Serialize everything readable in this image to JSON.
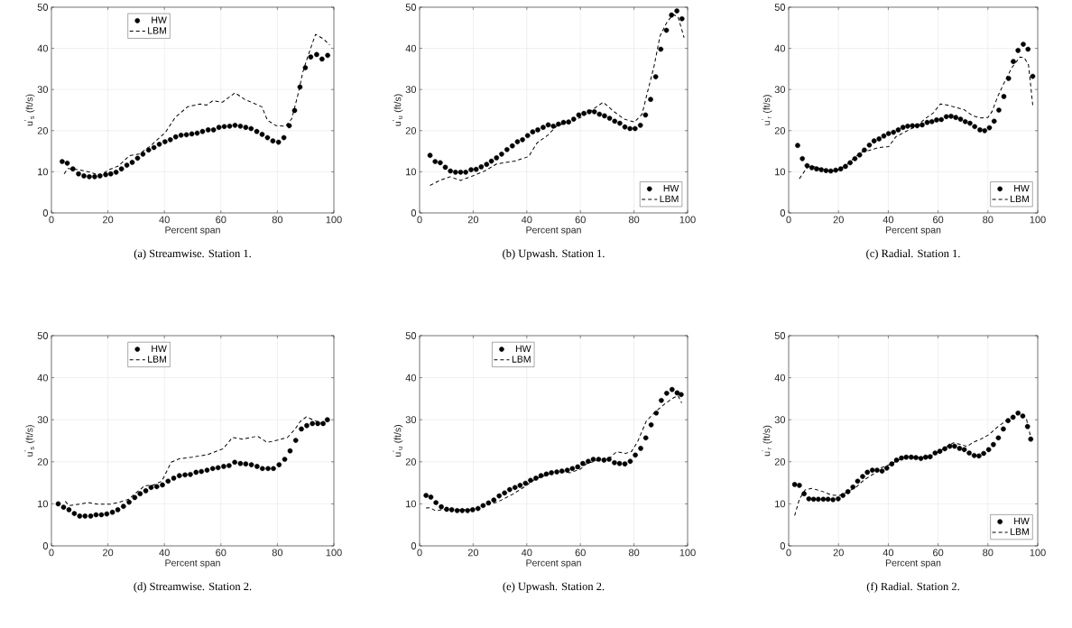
{
  "chart_data": [
    {
      "type": "line",
      "title": "(a)  Streamwise. Station 1.",
      "xlabel": "Percent span",
      "ylabel": "u$^{'}$$_{s}$ (ft/s)",
      "xlim": [
        0,
        100
      ],
      "ylim": [
        0,
        50
      ],
      "xticks": [
        0,
        20,
        40,
        60,
        80,
        100
      ],
      "yticks": [
        0,
        10,
        20,
        30,
        40,
        50
      ],
      "grid": true,
      "legend": "top left",
      "series": [
        {
          "name": "HW",
          "type": "scatter",
          "marker": "circle",
          "color": "#000000",
          "x": [
            3.8,
            5.6,
            7.6,
            9.6,
            11.5,
            13.4,
            15.3,
            17.2,
            19.2,
            21.0,
            22.9,
            24.8,
            26.7,
            28.6,
            30.5,
            32.4,
            34.4,
            36.3,
            38.2,
            40.2,
            42.1,
            44.0,
            45.9,
            47.8,
            49.7,
            51.6,
            53.5,
            55.5,
            57.4,
            59.3,
            61.2,
            63.1,
            65.0,
            66.9,
            68.8,
            70.7,
            72.7,
            74.6,
            76.5,
            78.4,
            80.4,
            82.3,
            84.2,
            86.1,
            88.0,
            89.9,
            91.8,
            93.9,
            95.8,
            97.8
          ],
          "values": [
            12.5,
            12.1,
            10.7,
            9.5,
            9.0,
            8.8,
            8.8,
            9.0,
            9.3,
            9.5,
            9.9,
            10.7,
            11.6,
            12.3,
            13.3,
            14.3,
            15.3,
            15.9,
            16.7,
            17.3,
            17.8,
            18.5,
            18.9,
            19.0,
            19.2,
            19.4,
            19.8,
            20.2,
            20.2,
            20.8,
            21.0,
            21.1,
            21.3,
            21.1,
            20.8,
            20.5,
            19.8,
            19.1,
            18.3,
            17.5,
            17.2,
            18.3,
            21.2,
            24.9,
            30.6,
            35.3,
            37.9,
            38.5,
            37.4,
            38.3
          ]
        },
        {
          "name": "LBM",
          "line_style": "dashed",
          "color": "#000000",
          "x": [
            4.5,
            5.8,
            9.7,
            13.6,
            17.2,
            20.3,
            23.7,
            27.6,
            31.0,
            34.9,
            40.4,
            43.8,
            48.2,
            52.7,
            54.9,
            57.2,
            60.5,
            65.0,
            68.4,
            74.5,
            76.5,
            79.6,
            82.9,
            85.1,
            87.4,
            89.0,
            90.7,
            93.5,
            96.3,
            98.5
          ],
          "values": [
            9.5,
            10.8,
            10.5,
            9.9,
            9.1,
            10.5,
            11.4,
            13.9,
            14.3,
            16.2,
            19.6,
            23.2,
            25.8,
            26.5,
            26.2,
            27.3,
            26.9,
            29.2,
            27.6,
            25.8,
            22.5,
            21.2,
            21.1,
            22.9,
            29.1,
            34.2,
            37.9,
            43.4,
            42.3,
            40.8
          ]
        }
      ]
    },
    {
      "type": "line",
      "title": "(b)  Upwash. Station 1.",
      "xlabel": "Percent span",
      "ylabel": "u$^{'}$$_{u}$ (ft/s)",
      "xlim": [
        0,
        100
      ],
      "ylim": [
        0,
        50
      ],
      "xticks": [
        0,
        20,
        40,
        60,
        80,
        100
      ],
      "yticks": [
        0,
        10,
        20,
        30,
        40,
        50
      ],
      "grid": true,
      "legend": "bottom right",
      "series": [
        {
          "name": "HW",
          "type": "scatter",
          "marker": "circle",
          "color": "#000000",
          "x": [
            3.9,
            5.8,
            7.7,
            9.6,
            11.5,
            13.4,
            15.3,
            17.2,
            19.2,
            21.1,
            23.0,
            25.0,
            26.8,
            28.7,
            30.6,
            32.6,
            34.6,
            36.5,
            38.4,
            40.3,
            42.2,
            44.1,
            46.1,
            48.0,
            49.9,
            51.8,
            53.7,
            55.6,
            57.5,
            59.4,
            61.3,
            63.3,
            65.2,
            67.1,
            69.0,
            70.9,
            72.8,
            74.7,
            76.6,
            78.5,
            80.4,
            82.4,
            84.3,
            86.2,
            88.1,
            90.0,
            92.1,
            94.0,
            96.0,
            97.9
          ],
          "values": [
            14.0,
            12.5,
            12.2,
            11.1,
            10.2,
            9.9,
            9.9,
            9.9,
            10.5,
            10.6,
            11.2,
            11.8,
            12.6,
            13.4,
            14.3,
            15.4,
            16.3,
            17.3,
            17.8,
            18.8,
            19.7,
            20.2,
            20.8,
            21.4,
            21.1,
            21.6,
            22.0,
            22.1,
            22.8,
            23.8,
            24.2,
            24.6,
            24.6,
            24.0,
            23.6,
            23.0,
            22.3,
            21.8,
            20.9,
            20.5,
            20.5,
            21.3,
            23.8,
            27.6,
            33.1,
            39.8,
            44.4,
            48.1,
            49.1,
            47.2
          ]
        },
        {
          "name": "LBM",
          "line_style": "dashed",
          "color": "#000000",
          "x": [
            3.9,
            7.5,
            11.4,
            15.3,
            19.8,
            24.3,
            28.7,
            35.5,
            40.7,
            43.8,
            47.8,
            51.1,
            55.6,
            60.1,
            63.4,
            68.5,
            72.4,
            76.3,
            80.2,
            83.0,
            85.2,
            87.5,
            89.7,
            92.5,
            94.7,
            96.4,
            98.7
          ],
          "values": [
            6.7,
            7.9,
            8.8,
            7.9,
            9.0,
            10.2,
            11.9,
            12.6,
            13.7,
            17.0,
            18.9,
            21.1,
            22.1,
            23.2,
            24.6,
            26.9,
            24.7,
            22.8,
            22.1,
            24.0,
            29.8,
            35.7,
            43.0,
            46.6,
            48.2,
            47.7,
            42.6
          ]
        }
      ]
    },
    {
      "type": "line",
      "title": "(c)  Radial. Station 1.",
      "xlabel": "Percent span",
      "ylabel": "u$^{'}$$_{r}$ (ft/s)",
      "xlim": [
        0,
        100
      ],
      "ylim": [
        0,
        50
      ],
      "xticks": [
        0,
        20,
        40,
        60,
        80,
        100
      ],
      "yticks": [
        0,
        10,
        20,
        30,
        40,
        50
      ],
      "grid": true,
      "legend": "bottom right",
      "series": [
        {
          "name": "HW",
          "type": "scatter",
          "marker": "circle",
          "color": "#000000",
          "x": [
            3.6,
            5.5,
            7.4,
            9.3,
            11.2,
            13.1,
            15.0,
            16.9,
            18.9,
            20.9,
            22.8,
            24.7,
            26.6,
            28.5,
            30.4,
            32.4,
            34.3,
            36.3,
            38.2,
            40.1,
            42.1,
            44.0,
            45.9,
            47.8,
            49.7,
            51.6,
            53.6,
            55.6,
            57.5,
            59.4,
            61.3,
            63.3,
            65.2,
            67.1,
            69.0,
            70.9,
            72.8,
            74.7,
            76.8,
            78.7,
            80.6,
            82.5,
            84.4,
            86.4,
            88.3,
            90.2,
            92.1,
            94.2,
            96.1,
            98.0
          ],
          "values": [
            16.4,
            13.2,
            11.5,
            11.0,
            10.7,
            10.5,
            10.3,
            10.2,
            10.4,
            10.7,
            11.3,
            12.2,
            13.2,
            14.1,
            15.3,
            16.5,
            17.5,
            18.0,
            18.7,
            19.3,
            19.6,
            20.2,
            20.8,
            21.1,
            21.2,
            21.2,
            21.4,
            22.0,
            22.2,
            22.6,
            22.7,
            23.4,
            23.5,
            23.2,
            22.8,
            22.2,
            21.8,
            21.0,
            20.2,
            20.0,
            20.7,
            22.3,
            25.0,
            28.3,
            32.7,
            36.8,
            39.5,
            41.0,
            39.8,
            33.2
          ]
        },
        {
          "name": "LBM",
          "line_style": "dashed",
          "color": "#000000",
          "x": [
            4.3,
            7.1,
            8.8,
            14.4,
            18.9,
            23.3,
            29.0,
            32.3,
            36.3,
            40.2,
            43.0,
            46.4,
            51.4,
            54.8,
            58.1,
            60.9,
            63.8,
            70.5,
            73.9,
            77.2,
            80.0,
            81.7,
            84.0,
            86.8,
            89.6,
            92.9,
            94.6,
            96.3,
            98.0
          ],
          "values": [
            8.3,
            10.8,
            11.5,
            10.5,
            10.1,
            11.7,
            14.8,
            15.2,
            15.9,
            16.1,
            18.5,
            19.6,
            21.1,
            22.9,
            24.3,
            26.5,
            26.2,
            25.1,
            23.6,
            23.1,
            23.2,
            24.7,
            28.4,
            32.0,
            35.3,
            37.9,
            37.7,
            36.0,
            26.2
          ]
        }
      ]
    },
    {
      "type": "line",
      "title": "(d)  Streamwise. Station 2.",
      "xlabel": "Percent span",
      "ylabel": "u$^{'}$$_{s}$ (ft/s)",
      "xlim": [
        0,
        100
      ],
      "ylim": [
        0,
        50
      ],
      "xticks": [
        0,
        20,
        40,
        60,
        80,
        100
      ],
      "yticks": [
        0,
        10,
        20,
        30,
        40,
        50
      ],
      "grid": true,
      "legend": "top left",
      "series": [
        {
          "name": "HW",
          "type": "scatter",
          "marker": "circle",
          "color": "#000000",
          "x": [
            2.4,
            4.3,
            6.2,
            8.1,
            10.0,
            11.9,
            13.9,
            15.8,
            17.7,
            19.6,
            21.6,
            23.5,
            25.5,
            27.5,
            29.5,
            31.4,
            33.4,
            35.3,
            37.3,
            39.3,
            41.3,
            43.3,
            45.3,
            47.3,
            49.2,
            51.2,
            53.1,
            55.1,
            57.1,
            59.0,
            61.0,
            62.9,
            64.9,
            66.9,
            68.8,
            70.8,
            72.8,
            74.7,
            76.7,
            78.6,
            80.6,
            82.6,
            84.5,
            86.5,
            88.5,
            90.4,
            92.4,
            94.3,
            96.2,
            97.7
          ],
          "values": [
            10.0,
            9.2,
            8.6,
            7.7,
            7.1,
            7.1,
            7.1,
            7.4,
            7.4,
            7.6,
            8.0,
            8.6,
            9.4,
            10.4,
            11.5,
            12.4,
            13.1,
            13.9,
            14.1,
            14.5,
            15.4,
            16.1,
            16.7,
            16.9,
            17.0,
            17.5,
            17.7,
            18.0,
            18.4,
            18.6,
            18.9,
            19.1,
            19.9,
            19.6,
            19.5,
            19.3,
            18.9,
            18.4,
            18.4,
            18.4,
            19.3,
            20.6,
            22.6,
            25.1,
            27.8,
            28.6,
            29.1,
            29.1,
            29.1,
            30.0
          ]
        },
        {
          "name": "LBM",
          "line_style": "dashed",
          "color": "#000000",
          "x": [
            4.9,
            6.2,
            10.7,
            12.9,
            16.3,
            20.7,
            24.1,
            27.4,
            29.6,
            33.0,
            36.3,
            39.1,
            42.4,
            45.2,
            49.7,
            55.2,
            60.8,
            64.1,
            67.5,
            73.0,
            76.4,
            79.7,
            83.6,
            86.4,
            88.1,
            90.3,
            92.5,
            94.8,
            97.0
          ],
          "values": [
            10.6,
            9.6,
            10.0,
            10.3,
            9.9,
            9.9,
            10.4,
            11.1,
            12.4,
            14.3,
            14.5,
            15.4,
            19.9,
            20.7,
            21.1,
            21.7,
            23.1,
            25.8,
            25.4,
            26.1,
            24.6,
            25.1,
            25.8,
            27.9,
            29.6,
            30.7,
            30.0,
            29.4,
            29.0
          ]
        }
      ]
    },
    {
      "type": "line",
      "title": "(e)  Upwash. Station 2.",
      "xlabel": "Percent span",
      "ylabel": "u$^{'}$$_{u}$ (ft/s)",
      "xlim": [
        0,
        100
      ],
      "ylim": [
        0,
        50
      ],
      "xticks": [
        0,
        20,
        40,
        60,
        80,
        100
      ],
      "yticks": [
        0,
        10,
        20,
        30,
        40,
        50
      ],
      "grid": true,
      "legend": "top left",
      "series": [
        {
          "name": "HW",
          "type": "scatter",
          "marker": "circle",
          "color": "#000000",
          "x": [
            2.4,
            4.2,
            6.1,
            8.1,
            10.1,
            12.0,
            14.0,
            15.9,
            17.9,
            19.8,
            21.8,
            23.7,
            25.7,
            27.7,
            29.7,
            31.7,
            33.6,
            35.6,
            37.5,
            39.5,
            41.4,
            43.4,
            45.3,
            47.3,
            49.2,
            51.2,
            53.1,
            55.1,
            57.0,
            59.0,
            60.9,
            62.9,
            64.8,
            66.8,
            68.8,
            70.7,
            72.7,
            74.6,
            76.6,
            78.6,
            80.5,
            82.5,
            84.4,
            86.4,
            88.3,
            90.2,
            92.2,
            94.2,
            96.1,
            97.6
          ],
          "values": [
            12.0,
            11.6,
            10.3,
            9.3,
            8.7,
            8.6,
            8.4,
            8.4,
            8.4,
            8.6,
            8.9,
            9.6,
            10.2,
            10.9,
            11.9,
            12.6,
            13.4,
            13.9,
            14.4,
            14.9,
            15.6,
            16.1,
            16.7,
            17.1,
            17.4,
            17.6,
            17.8,
            18.0,
            18.4,
            18.8,
            19.6,
            20.1,
            20.6,
            20.6,
            20.4,
            20.6,
            19.8,
            19.6,
            19.5,
            20.1,
            21.6,
            23.2,
            25.7,
            28.8,
            31.6,
            34.6,
            36.3,
            37.2,
            36.4,
            36.0
          ]
        },
        {
          "name": "LBM",
          "line_style": "dashed",
          "color": "#000000",
          "x": [
            2.4,
            3.9,
            6.1,
            8.9,
            14.5,
            20.0,
            24.5,
            29.0,
            34.5,
            39.0,
            43.4,
            47.9,
            52.3,
            56.2,
            60.1,
            62.4,
            66.8,
            71.3,
            73.5,
            76.8,
            79.0,
            81.3,
            84.6,
            88.0,
            91.9,
            94.7,
            96.4,
            97.8
          ],
          "values": [
            9.0,
            9.1,
            8.3,
            8.7,
            8.6,
            8.6,
            9.7,
            10.4,
            12.2,
            14.0,
            16.0,
            17.0,
            17.8,
            17.4,
            18.3,
            19.6,
            20.4,
            21.1,
            22.4,
            22.0,
            22.4,
            24.7,
            29.7,
            31.9,
            34.0,
            35.2,
            35.7,
            34.0
          ]
        }
      ]
    },
    {
      "type": "line",
      "title": "(f)  Radial. Station 2.",
      "xlabel": "Percent span",
      "ylabel": "u$^{'}$$_{r}$ (ft/s)",
      "xlim": [
        0,
        100
      ],
      "ylim": [
        0,
        50
      ],
      "xticks": [
        0,
        20,
        40,
        60,
        80,
        100
      ],
      "yticks": [
        0,
        10,
        20,
        30,
        40,
        50
      ],
      "grid": true,
      "legend": "bottom right",
      "series": [
        {
          "name": "HW",
          "type": "scatter",
          "marker": "circle",
          "color": "#000000",
          "x": [
            2.4,
            4.3,
            6.2,
            8.1,
            10.0,
            11.9,
            13.9,
            15.8,
            17.8,
            19.9,
            21.8,
            23.8,
            25.8,
            27.7,
            29.7,
            31.6,
            33.6,
            35.5,
            37.5,
            39.4,
            41.4,
            43.3,
            45.3,
            47.2,
            49.2,
            51.1,
            53.1,
            55.0,
            56.8,
            58.8,
            60.7,
            62.7,
            64.7,
            66.6,
            68.6,
            70.5,
            72.5,
            74.5,
            76.4,
            78.3,
            80.3,
            82.2,
            84.2,
            86.2,
            88.1,
            90.1,
            92.1,
            94.0,
            95.9,
            97.2
          ],
          "values": [
            14.6,
            14.4,
            12.4,
            11.2,
            11.1,
            11.1,
            11.1,
            11.1,
            11.0,
            11.2,
            12.0,
            12.9,
            14.0,
            15.4,
            16.5,
            17.5,
            18.0,
            18.0,
            17.8,
            18.5,
            19.5,
            20.4,
            20.9,
            21.1,
            21.1,
            21.0,
            20.8,
            21.1,
            21.2,
            22.1,
            22.5,
            23.1,
            23.7,
            23.7,
            23.2,
            22.9,
            22.1,
            21.5,
            21.4,
            22.0,
            22.9,
            24.1,
            25.7,
            27.8,
            29.8,
            30.6,
            31.6,
            30.9,
            28.4,
            25.4
          ]
        },
        {
          "name": "LBM",
          "line_style": "dashed",
          "color": "#000000",
          "x": [
            2.4,
            4.3,
            6.6,
            9.3,
            13.8,
            17.1,
            20.5,
            23.8,
            27.1,
            30.5,
            33.8,
            37.2,
            40.5,
            43.9,
            48.3,
            53.8,
            58.3,
            62.7,
            66.1,
            69.4,
            71.6,
            73.9,
            77.2,
            80.5,
            83.9,
            87.2,
            90.5,
            92.8,
            95.5,
            97.2
          ],
          "values": [
            7.2,
            11.1,
            13.3,
            13.7,
            12.9,
            12.1,
            12.0,
            12.9,
            14.0,
            15.8,
            17.0,
            18.6,
            19.3,
            20.4,
            21.1,
            21.0,
            21.7,
            23.3,
            24.5,
            24.1,
            23.6,
            24.6,
            25.4,
            26.5,
            28.3,
            29.7,
            31.0,
            31.5,
            30.1,
            25.8
          ]
        }
      ]
    }
  ]
}
